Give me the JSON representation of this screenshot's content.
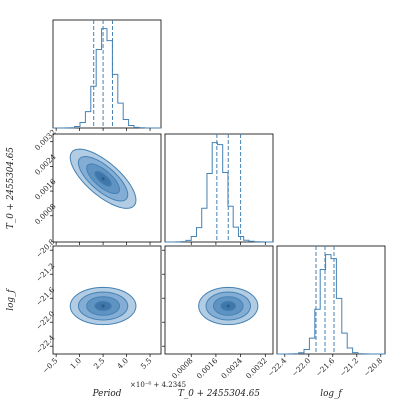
{
  "chart_data": {
    "type": "corner",
    "color": "#4682b4",
    "parameters": [
      "Period",
      "T0",
      "logf"
    ],
    "labels": {
      "Period": "Period",
      "T0": "T_0 + 2455304.65",
      "logf": "log_f"
    },
    "offsets": {
      "Period": "1e-6 + 4.2345",
      "Period_multiplier": "×10⁻⁶ + 4.2345",
      "T0": "",
      "logf": ""
    },
    "ranges": {
      "Period": [
        -0.7,
        6.2
      ],
      "T0": [
        -5e-05,
        0.00345
      ],
      "logf": [
        -22.53,
        -20.73
      ]
    },
    "ticks": {
      "Period": [
        -0.5,
        1.0,
        2.5,
        4.0,
        5.5
      ],
      "Period_labels": [
        "−0.5",
        "1.0",
        "2.5",
        "4.0",
        "5.5"
      ],
      "T0": [
        0.0008,
        0.0016,
        0.0024,
        0.0032
      ],
      "T0_labels": [
        "0.0008",
        "0.0016",
        "0.0024",
        "0.0032"
      ],
      "logf": [
        -22.4,
        -22.0,
        -21.6,
        -21.2,
        -20.8
      ],
      "logf_labels": [
        "−22.4",
        "−22.0",
        "−21.6",
        "−21.2",
        "−20.8"
      ]
    },
    "quantiles": {
      "Period": [
        1.9,
        2.5,
        3.1
      ],
      "T0": [
        0.00163,
        0.002,
        0.0024
      ],
      "logf": [
        -21.88,
        -21.73,
        -21.58
      ]
    },
    "histograms": {
      "Period": {
        "edges": [
          -0.7,
          -0.355,
          -0.01,
          0.335,
          0.68,
          1.025,
          1.37,
          1.715,
          2.06,
          2.405,
          2.75,
          3.095,
          3.44,
          3.785,
          4.13,
          4.475,
          4.82,
          5.165,
          5.51,
          5.855,
          6.2
        ],
        "counts": [
          0,
          0,
          1,
          3,
          15,
          55,
          165,
          420,
          790,
          1000,
          880,
          540,
          250,
          85,
          25,
          6,
          2,
          0,
          0,
          0
        ]
      },
      "T0": {
        "edges": [
          -5e-05,
          0.00012,
          0.00029,
          0.00046,
          0.00063,
          0.0008,
          0.00097,
          0.00114,
          0.00131,
          0.00148,
          0.00165,
          0.00182,
          0.00199,
          0.00216,
          0.00233,
          0.0025,
          0.00267,
          0.00284,
          0.00301,
          0.00318,
          0.00345
        ],
        "counts": [
          0,
          0,
          1,
          4,
          16,
          55,
          145,
          340,
          690,
          1000,
          980,
          700,
          360,
          150,
          55,
          18,
          8,
          3,
          1,
          0
        ]
      },
      "logf": {
        "edges": [
          -22.53,
          -22.44,
          -22.35,
          -22.26,
          -22.17,
          -22.08,
          -21.99,
          -21.9,
          -21.81,
          -21.72,
          -21.63,
          -21.54,
          -21.45,
          -21.36,
          -21.27,
          -21.18,
          -21.09,
          -21.0,
          -20.91,
          -20.82,
          -20.73
        ],
        "counts": [
          0,
          0,
          1,
          3,
          12,
          45,
          160,
          450,
          850,
          1000,
          960,
          560,
          210,
          60,
          14,
          3,
          1,
          0,
          0,
          0
        ]
      }
    },
    "contours_2d": [
      {
        "x": "Period",
        "y": "T0",
        "center": [
          2.5,
          0.002
        ],
        "sd": [
          1.05,
          0.00048
        ],
        "corr": -0.72
      },
      {
        "x": "Period",
        "y": "logf",
        "center": [
          2.5,
          -21.73
        ],
        "sd": [
          1.05,
          0.155
        ],
        "corr": 0.0
      },
      {
        "x": "T0",
        "y": "logf",
        "center": [
          0.002,
          -21.73
        ],
        "sd": [
          0.00048,
          0.155
        ],
        "corr": 0.0
      }
    ],
    "contour_levels_sigma": [
      0.5,
      1.0,
      1.5,
      2.0
    ]
  }
}
